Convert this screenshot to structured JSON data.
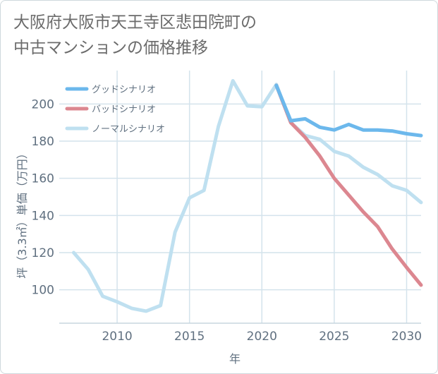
{
  "title": {
    "line1": "大阪府大阪市天王寺区悲田院町の",
    "line2": "中古マンションの価格推移"
  },
  "chart_data": {
    "type": "line",
    "title": "大阪府大阪市天王寺区悲田院町の中古マンションの価格推移",
    "xlabel": "年",
    "ylabel": "坪（3.3㎡）単価（万円）",
    "xlim": [
      2006,
      2031
    ],
    "ylim": [
      82,
      218
    ],
    "xticks": [
      2010,
      2015,
      2020,
      2025,
      2030
    ],
    "yticks": [
      100,
      120,
      140,
      160,
      180,
      200
    ],
    "grid": true,
    "legend_position": "top-left",
    "series": [
      {
        "name": "グッドシナリオ",
        "color": "#6cb8ec",
        "x": [
          2021,
          2022,
          2023,
          2024,
          2025,
          2026,
          2027,
          2028,
          2029,
          2030,
          2031
        ],
        "values": [
          210,
          191,
          192,
          187.5,
          186,
          189,
          186,
          186,
          185.5,
          184,
          183
        ]
      },
      {
        "name": "バッドシナリオ",
        "color": "#dc8790",
        "x": [
          2021,
          2022,
          2023,
          2024,
          2025,
          2026,
          2027,
          2028,
          2029,
          2030,
          2031
        ],
        "values": [
          210,
          190,
          182,
          172,
          160,
          151,
          142,
          134,
          122,
          112,
          102.5
        ]
      },
      {
        "name": "ノーマルシナリオ",
        "color": "#bfe0f0",
        "x": [
          2007,
          2008,
          2009,
          2010,
          2011,
          2012,
          2013,
          2014,
          2015,
          2016,
          2017,
          2018,
          2019,
          2020,
          2021,
          2022,
          2023,
          2024,
          2025,
          2026,
          2027,
          2028,
          2029,
          2030,
          2031
        ],
        "values": [
          120,
          111,
          96.5,
          93.5,
          90,
          88.5,
          91.5,
          131,
          149.5,
          153.5,
          188,
          212.5,
          199,
          198.5,
          210.5,
          190,
          183,
          181,
          174.5,
          172,
          166,
          162,
          156,
          153.5,
          147
        ]
      }
    ]
  }
}
